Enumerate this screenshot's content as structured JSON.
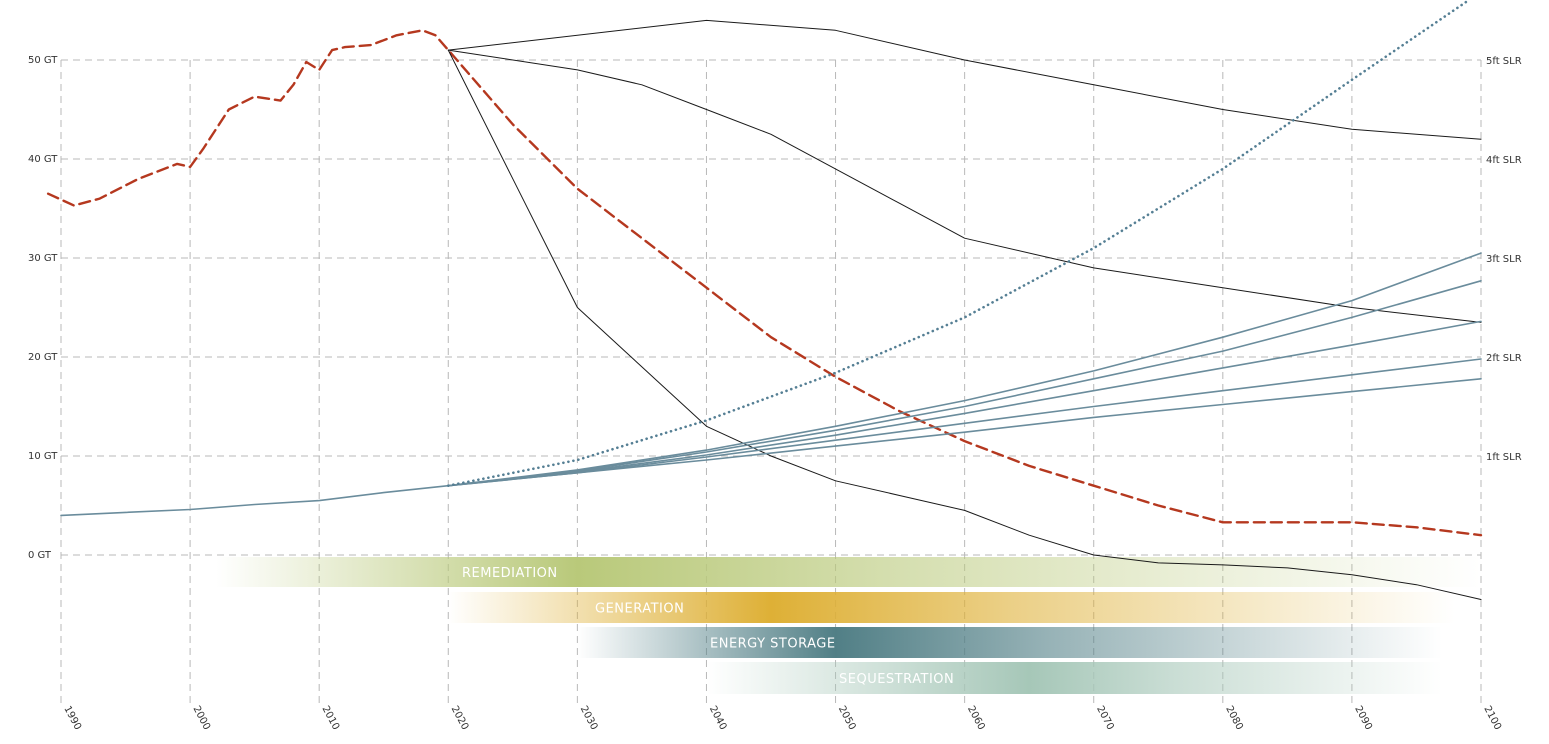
{
  "chart_data": {
    "type": "line",
    "x_ticks": [
      "1990",
      "2000",
      "2010",
      "2020",
      "2030",
      "2040",
      "2050",
      "2060",
      "2070",
      "2080",
      "2090",
      "2100"
    ],
    "y_ticks_left": [
      "0 GT",
      "10 GT",
      "20 GT",
      "30 GT",
      "40 GT",
      "50 GT"
    ],
    "y_ticks_right": [
      "1ft SLR",
      "2ft SLR",
      "3ft SLR",
      "4ft SLR",
      "5ft SLR"
    ],
    "xlim": [
      1990,
      2100
    ],
    "ylim": [
      0,
      50
    ],
    "grid": true,
    "colors": {
      "historical_emissions": "#b5381f",
      "scenario_lines": "#1a1a1a",
      "sea_level_lines": "#6a8c9c",
      "dotted_projection": "#557f94",
      "grid": "#b8b8b8"
    },
    "series": [
      {
        "style": "dashed-red",
        "x": [
          1989,
          1991,
          1993,
          1996,
          1999,
          2000,
          2001,
          2003,
          2005,
          2007,
          2008,
          2009,
          2010,
          2011,
          2012,
          2014,
          2016,
          2018,
          2019,
          2020,
          2025,
          2030,
          2035,
          2040,
          2045,
          2050,
          2055,
          2060,
          2065,
          2070,
          2075,
          2080,
          2085,
          2090,
          2095,
          2100
        ],
        "y": [
          36.5,
          35.3,
          36.0,
          38.0,
          39.5,
          39.2,
          41.0,
          45.0,
          46.3,
          45.9,
          47.5,
          49.8,
          49.0,
          51.0,
          51.3,
          51.5,
          52.5,
          53.0,
          52.5,
          51.0,
          43.5,
          37.0,
          32.0,
          27.0,
          22.0,
          18.0,
          14.5,
          11.5,
          9.0,
          7.0,
          5.0,
          3.3,
          3.3,
          3.3,
          2.8,
          2.0
        ]
      },
      {
        "style": "solid-black",
        "x": [
          2020,
          2040,
          2050,
          2060,
          2070,
          2080,
          2090,
          2100
        ],
        "y": [
          51.0,
          54.0,
          53.0,
          50.0,
          47.5,
          45.0,
          43.0,
          42.0
        ]
      },
      {
        "style": "solid-black",
        "x": [
          2020,
          2030,
          2035,
          2040,
          2045,
          2050,
          2055,
          2060,
          2070,
          2080,
          2090,
          2100
        ],
        "y": [
          51.0,
          49.0,
          47.5,
          45.0,
          42.5,
          39.0,
          35.5,
          32.0,
          29.0,
          27.0,
          25.0,
          23.5
        ]
      },
      {
        "style": "solid-black",
        "x": [
          2020,
          2025,
          2030,
          2035,
          2040,
          2045,
          2050,
          2055,
          2060,
          2065,
          2070,
          2075,
          2080,
          2085,
          2090,
          2095,
          2100
        ],
        "y": [
          51.0,
          38.0,
          25.0,
          19.0,
          13.0,
          10.0,
          7.5,
          6.0,
          4.5,
          2.0,
          0.0,
          -0.8,
          -1.0,
          -1.3,
          -2.0,
          -3.0,
          -4.5
        ]
      },
      {
        "style": "solid-blue",
        "x": [
          1990,
          1995,
          2000,
          2005,
          2010,
          2015,
          2020,
          2030,
          2040,
          2050,
          2060,
          2070,
          2080,
          2090,
          2100
        ],
        "y": [
          4.0,
          4.3,
          4.6,
          5.1,
          5.5,
          6.3,
          7.0,
          8.3,
          9.6,
          11.0,
          12.4,
          13.9,
          15.2,
          16.5,
          17.8
        ]
      },
      {
        "style": "solid-blue",
        "x": [
          2020,
          2030,
          2040,
          2050,
          2060,
          2070,
          2080,
          2090,
          2100
        ],
        "y": [
          7.0,
          8.3,
          9.9,
          11.6,
          13.3,
          15.0,
          16.6,
          18.2,
          19.8
        ]
      },
      {
        "style": "solid-blue",
        "x": [
          2020,
          2030,
          2040,
          2050,
          2060,
          2070,
          2080,
          2090,
          2100
        ],
        "y": [
          7.0,
          8.4,
          10.1,
          12.1,
          14.3,
          16.6,
          18.9,
          21.2,
          23.6
        ]
      },
      {
        "style": "solid-blue",
        "x": [
          2020,
          2030,
          2040,
          2050,
          2060,
          2070,
          2080,
          2090,
          2100
        ],
        "y": [
          7.0,
          8.5,
          10.4,
          12.6,
          15.0,
          17.8,
          20.6,
          24.0,
          27.7
        ]
      },
      {
        "style": "solid-blue",
        "x": [
          2020,
          2030,
          2040,
          2050,
          2060,
          2070,
          2080,
          2090,
          2100
        ],
        "y": [
          7.0,
          8.6,
          10.6,
          13.0,
          15.6,
          18.6,
          22.0,
          25.7,
          30.5
        ]
      },
      {
        "style": "dotted-blue",
        "x": [
          2020,
          2030,
          2040,
          2050,
          2060,
          2070,
          2080,
          2090,
          2099
        ],
        "y": [
          7.0,
          9.6,
          13.6,
          18.4,
          24.0,
          31.0,
          39.0,
          48.0,
          56.0
        ]
      }
    ],
    "bands": [
      {
        "label": "REMEDIATION",
        "color": "#b9c97a",
        "x_start": 2002,
        "x_end": 2100,
        "peak": 2030
      },
      {
        "label": "GENERATION",
        "color": "#deb036",
        "x_start": 2020,
        "x_end": 2098,
        "peak": 2045
      },
      {
        "label": "ENERGY STORAGE",
        "color": "#517f86",
        "x_start": 2030,
        "x_end": 2097,
        "peak": 2050
      },
      {
        "label": "SEQUESTRATION",
        "color": "#a6c7b8",
        "x_start": 2040,
        "x_end": 2097,
        "peak": 2065
      }
    ]
  }
}
